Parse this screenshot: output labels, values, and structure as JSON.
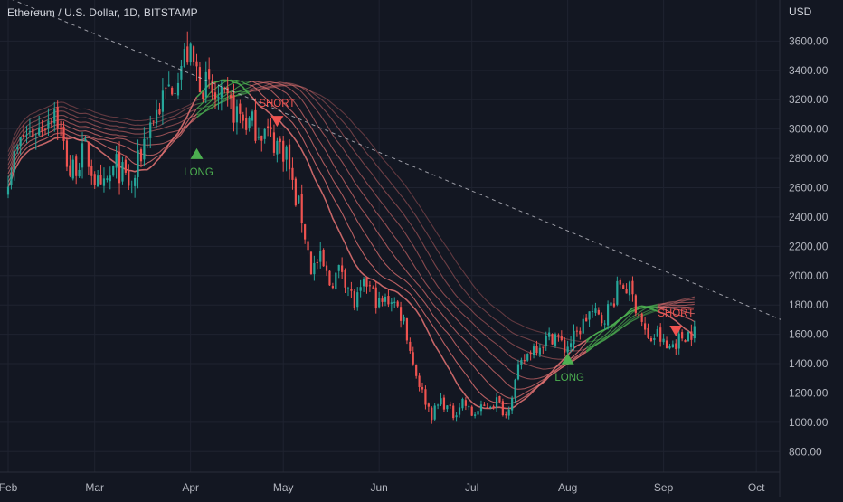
{
  "header": {
    "title": "Ethereum / U.S. Dollar, 1D, BITSTAMP",
    "currency": "USD"
  },
  "colors": {
    "background": "#131722",
    "grid": "#1f2330",
    "up": "#26a69a",
    "down": "#ef5350",
    "ribbon_bull": "#4caf50",
    "ribbon_bear": "#e57373",
    "trendline": "#c8c8d0",
    "axis_text": "#b2b5be"
  },
  "chart_data": {
    "type": "candlestick",
    "title": "Ethereum / U.S. Dollar, 1D, BITSTAMP",
    "ylabel": "USD",
    "ylim": [
      660,
      3880
    ],
    "y_ticks": [
      "800.00",
      "1000.00",
      "1200.00",
      "1400.00",
      "1600.00",
      "1800.00",
      "2000.00",
      "2200.00",
      "2400.00",
      "2600.00",
      "2800.00",
      "3000.00",
      "3200.00",
      "3400.00",
      "3600.00"
    ],
    "x_ticks": [
      "Feb",
      "Mar",
      "Apr",
      "May",
      "Jun",
      "Jul",
      "Aug",
      "Sep",
      "Oct"
    ],
    "grid": true,
    "close_path": [
      [
        0,
        2700
      ],
      [
        5,
        2950
      ],
      [
        10,
        3000
      ],
      [
        15,
        3150
      ],
      [
        20,
        2700
      ],
      [
        25,
        2850
      ],
      [
        30,
        2550
      ],
      [
        35,
        2750
      ],
      [
        40,
        2600
      ],
      [
        45,
        3000
      ],
      [
        50,
        3200
      ],
      [
        55,
        3400
      ],
      [
        58,
        3520
      ],
      [
        62,
        3350
      ],
      [
        67,
        3200
      ],
      [
        72,
        3150
      ],
      [
        77,
        3050
      ],
      [
        82,
        3000
      ],
      [
        86,
        2920
      ],
      [
        90,
        2850
      ],
      [
        92,
        2600
      ],
      [
        95,
        2400
      ],
      [
        98,
        2050
      ],
      [
        101,
        2100
      ],
      [
        104,
        1950
      ],
      [
        108,
        2050
      ],
      [
        112,
        1800
      ],
      [
        116,
        1950
      ],
      [
        120,
        1800
      ],
      [
        124,
        1850
      ],
      [
        128,
        1700
      ],
      [
        131,
        1400
      ],
      [
        134,
        1200
      ],
      [
        137,
        1050
      ],
      [
        140,
        1150
      ],
      [
        144,
        1050
      ],
      [
        147,
        1150
      ],
      [
        150,
        1050
      ],
      [
        154,
        1100
      ],
      [
        158,
        1150
      ],
      [
        161,
        1050
      ],
      [
        165,
        1350
      ],
      [
        169,
        1500
      ],
      [
        173,
        1550
      ],
      [
        177,
        1600
      ],
      [
        180,
        1500
      ],
      [
        184,
        1600
      ],
      [
        188,
        1750
      ],
      [
        192,
        1700
      ],
      [
        195,
        1800
      ],
      [
        198,
        1950
      ],
      [
        201,
        1900
      ],
      [
        204,
        1750
      ],
      [
        207,
        1550
      ],
      [
        210,
        1600
      ],
      [
        213,
        1500
      ],
      [
        216,
        1550
      ],
      [
        219,
        1600
      ],
      [
        222,
        1620
      ]
    ],
    "ribbon": {
      "type": "moving-average ribbon",
      "lengths": [
        20,
        25,
        30,
        35,
        40,
        45,
        50,
        55,
        60
      ]
    },
    "trendline": {
      "x": [
        -12,
        250
      ],
      "y": [
        4000,
        1700
      ],
      "style": "dashed"
    },
    "signals": [
      {
        "label": "LONG",
        "type": "long",
        "day": 61,
        "price": 2820
      },
      {
        "label": "SHORT",
        "type": "short",
        "day": 87,
        "price": 3040
      },
      {
        "label": "LONG",
        "type": "long",
        "day": 181,
        "price": 1420
      },
      {
        "label": "SHORT",
        "type": "short",
        "day": 216,
        "price": 1610
      }
    ]
  }
}
